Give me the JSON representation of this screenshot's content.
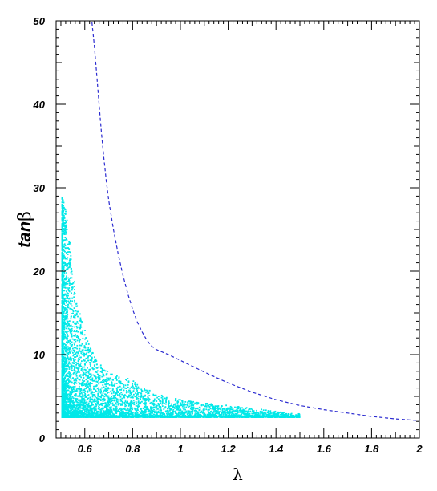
{
  "chart_data": {
    "type": "scatter",
    "title": "",
    "xlabel": "λ",
    "ylabel_main": "tan",
    "ylabel_symbol": "β",
    "xlim": [
      0.48,
      2.0
    ],
    "ylim": [
      0,
      50
    ],
    "grid": false,
    "legend": "none",
    "x_ticks": [
      {
        "value": 0.6,
        "label": "0.6"
      },
      {
        "value": 0.8,
        "label": "0.8"
      },
      {
        "value": 1.0,
        "label": "1"
      },
      {
        "value": 1.2,
        "label": "1.2"
      },
      {
        "value": 1.4,
        "label": "1.4"
      },
      {
        "value": 1.6,
        "label": "1.6"
      },
      {
        "value": 1.8,
        "label": "1.8"
      },
      {
        "value": 2.0,
        "label": "2"
      }
    ],
    "y_ticks": [
      {
        "value": 0,
        "label": "0"
      },
      {
        "value": 10,
        "label": "10"
      },
      {
        "value": 20,
        "label": "20"
      },
      {
        "value": 30,
        "label": "30"
      },
      {
        "value": 40,
        "label": "40"
      },
      {
        "value": 50,
        "label": "50"
      }
    ],
    "series": [
      {
        "style": "dashed-line",
        "color": "#2a2ad0",
        "points": [
          [
            0.63,
            49.8
          ],
          [
            0.64,
            47.0
          ],
          [
            0.65,
            43.5
          ],
          [
            0.66,
            40.0
          ],
          [
            0.67,
            36.5
          ],
          [
            0.68,
            33.5
          ],
          [
            0.69,
            30.8
          ],
          [
            0.7,
            28.5
          ],
          [
            0.72,
            25.0
          ],
          [
            0.74,
            22.0
          ],
          [
            0.76,
            19.5
          ],
          [
            0.78,
            17.3
          ],
          [
            0.8,
            15.4
          ],
          [
            0.82,
            13.9
          ],
          [
            0.84,
            12.7
          ],
          [
            0.86,
            11.7
          ],
          [
            0.88,
            11.0
          ],
          [
            0.9,
            10.6
          ],
          [
            0.95,
            10.0
          ],
          [
            1.0,
            9.3
          ],
          [
            1.1,
            7.9
          ],
          [
            1.2,
            6.6
          ],
          [
            1.3,
            5.5
          ],
          [
            1.4,
            4.6
          ],
          [
            1.5,
            3.9
          ],
          [
            1.6,
            3.4
          ],
          [
            1.7,
            3.0
          ],
          [
            1.8,
            2.6
          ],
          [
            1.9,
            2.3
          ],
          [
            2.0,
            2.1
          ]
        ]
      },
      {
        "style": "scatter",
        "color": "#00e8e8",
        "description_of_distribution": "",
        "envelope": [
          [
            0.505,
            28.8
          ],
          [
            0.51,
            28.5
          ],
          [
            0.52,
            27.5
          ],
          [
            0.53,
            25.0
          ],
          [
            0.54,
            23.0
          ],
          [
            0.55,
            20.5
          ],
          [
            0.56,
            18.0
          ],
          [
            0.57,
            16.0
          ],
          [
            0.58,
            15.0
          ],
          [
            0.6,
            13.0
          ],
          [
            0.62,
            11.0
          ],
          [
            0.65,
            9.3
          ],
          [
            0.7,
            7.9
          ],
          [
            0.75,
            7.3
          ],
          [
            0.8,
            7.0
          ],
          [
            0.85,
            6.0
          ],
          [
            0.9,
            5.3
          ],
          [
            1.0,
            4.6
          ],
          [
            1.1,
            4.2
          ],
          [
            1.2,
            3.9
          ],
          [
            1.3,
            3.6
          ],
          [
            1.4,
            3.2
          ],
          [
            1.45,
            3.0
          ],
          [
            1.5,
            2.9
          ]
        ],
        "y_min": 2.5,
        "count": 6000
      }
    ]
  }
}
